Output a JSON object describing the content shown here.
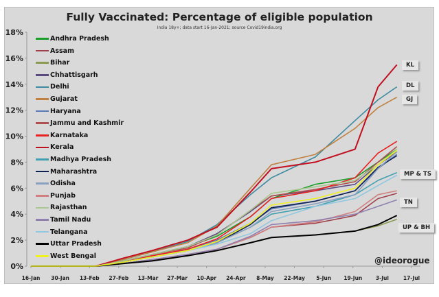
{
  "chart_data": {
    "type": "line",
    "title": "Fully Vaccinated: Percentage of eligible population",
    "subtitle": "India 18y+; data  start 16-Jan-2021; source Covid19india.org",
    "xlabel": "",
    "ylabel": "",
    "x_ticks": [
      "16-Jan",
      "30-Jan",
      "13-Feb",
      "27-Feb",
      "13-Mar",
      "27-Mar",
      "10-Apr",
      "24-Apr",
      "8-May",
      "22-May",
      "5-Jun",
      "19-Jun",
      "3-Jul",
      "17-Jul"
    ],
    "y_ticks": [
      "0%",
      "2%",
      "4%",
      "6%",
      "8%",
      "10%",
      "12%",
      "14%",
      "16%",
      "18%"
    ],
    "ylim": [
      0,
      18
    ],
    "grid": false,
    "legend": "top-left",
    "x": [
      "16-Jan",
      "16-Feb",
      "1-Mar",
      "15-Mar",
      "1-Apr",
      "15-Apr",
      "1-May",
      "11-May",
      "1-Jun",
      "20-Jun",
      "1-Jul",
      "10-Jul"
    ],
    "series": [
      {
        "name": "Andhra Pradesh",
        "color": "#1a9e2a",
        "values": [
          0,
          0,
          0.4,
          0.9,
          1.5,
          2.3,
          3.8,
          5.2,
          6.3,
          6.8,
          8.0,
          9.0
        ]
      },
      {
        "name": "Assam",
        "color": "#a0404a",
        "values": [
          0,
          0,
          0.2,
          0.5,
          0.9,
          1.3,
          2.2,
          3.0,
          3.3,
          3.9,
          5.2,
          5.6
        ]
      },
      {
        "name": "Bihar",
        "color": "#8a9a50",
        "values": [
          0,
          0,
          0.2,
          0.5,
          0.8,
          1.2,
          1.8,
          2.2,
          2.4,
          2.7,
          3.1,
          3.6
        ]
      },
      {
        "name": "Chhattisgarh",
        "color": "#5a4a80",
        "values": [
          0,
          0,
          0.4,
          0.9,
          1.5,
          2.5,
          4.2,
          5.4,
          5.8,
          6.3,
          7.8,
          8.8
        ]
      },
      {
        "name": "Delhi",
        "color": "#3e8aa0",
        "values": [
          0,
          0,
          0.5,
          1.1,
          1.9,
          3.2,
          5.5,
          6.8,
          8.4,
          11.2,
          12.8,
          13.8
        ]
      },
      {
        "name": "Gujarat",
        "color": "#c08040",
        "values": [
          0,
          0,
          0.5,
          1.1,
          1.8,
          3.1,
          6.0,
          7.8,
          8.6,
          10.6,
          12.2,
          13.0
        ]
      },
      {
        "name": "Haryana",
        "color": "#5a7ab8",
        "values": [
          0,
          0,
          0.3,
          0.8,
          1.3,
          2.0,
          3.3,
          4.4,
          5.0,
          5.8,
          7.5,
          8.6
        ]
      },
      {
        "name": "Jammu and Kashmir",
        "color": "#b05050",
        "values": [
          0,
          0,
          0.4,
          0.9,
          1.4,
          2.4,
          4.3,
          5.4,
          5.9,
          6.5,
          8.0,
          9.2
        ]
      },
      {
        "name": "Karnataka",
        "color": "#e82020",
        "values": [
          0,
          0,
          0.3,
          0.8,
          1.3,
          2.1,
          3.8,
          5.2,
          5.8,
          6.8,
          8.7,
          9.6
        ]
      },
      {
        "name": "Kerala",
        "color": "#c01020",
        "values": [
          0,
          0,
          0.6,
          1.2,
          2.0,
          3.0,
          5.7,
          7.5,
          8.0,
          9.0,
          13.8,
          15.5
        ]
      },
      {
        "name": "Madhya Pradesh",
        "color": "#40a0b0",
        "values": [
          0,
          0,
          0.3,
          0.7,
          1.2,
          1.8,
          3.0,
          4.0,
          4.6,
          5.5,
          6.6,
          7.2
        ]
      },
      {
        "name": "Maharashtra",
        "color": "#102050",
        "values": [
          0,
          0,
          0.3,
          0.7,
          1.2,
          1.8,
          3.2,
          4.5,
          5.0,
          5.8,
          7.6,
          8.5
        ]
      },
      {
        "name": "Odisha",
        "color": "#8aa0c0",
        "values": [
          0,
          0,
          0.3,
          0.7,
          1.2,
          1.8,
          3.0,
          4.2,
          4.8,
          5.5,
          7.5,
          8.8
        ]
      },
      {
        "name": "Punjab",
        "color": "#d08080",
        "values": [
          0,
          0,
          0.2,
          0.5,
          0.9,
          1.3,
          2.2,
          3.0,
          3.4,
          4.2,
          5.5,
          5.8
        ]
      },
      {
        "name": "Rajasthan",
        "color": "#a8c890",
        "values": [
          0,
          0,
          0.4,
          0.9,
          1.5,
          2.4,
          4.3,
          5.6,
          6.1,
          6.6,
          7.8,
          9.0
        ]
      },
      {
        "name": "Tamil Nadu",
        "color": "#9080b0",
        "values": [
          0,
          0,
          0.2,
          0.5,
          0.9,
          1.3,
          2.3,
          3.2,
          3.5,
          4.0,
          4.6,
          5.1
        ]
      },
      {
        "name": "Telangana",
        "color": "#90c8e0",
        "values": [
          0,
          0,
          0.3,
          0.7,
          1.2,
          1.7,
          2.5,
          3.5,
          4.6,
          5.2,
          6.2,
          7.0
        ]
      },
      {
        "name": "Uttar Pradesh",
        "color": "#000000",
        "values": [
          0,
          0,
          0.2,
          0.4,
          0.8,
          1.2,
          1.8,
          2.2,
          2.4,
          2.7,
          3.2,
          3.9
        ]
      },
      {
        "name": "West Bengal",
        "color": "#f0f020",
        "values": [
          0,
          0,
          0.3,
          0.7,
          1.2,
          1.9,
          3.3,
          4.7,
          5.2,
          6.0,
          7.8,
          8.9
        ]
      }
    ],
    "annotations": [
      "KL",
      "DL",
      "GJ",
      "MP & TS",
      "TN",
      "UP & BH"
    ],
    "credit": "@ideorogue"
  }
}
